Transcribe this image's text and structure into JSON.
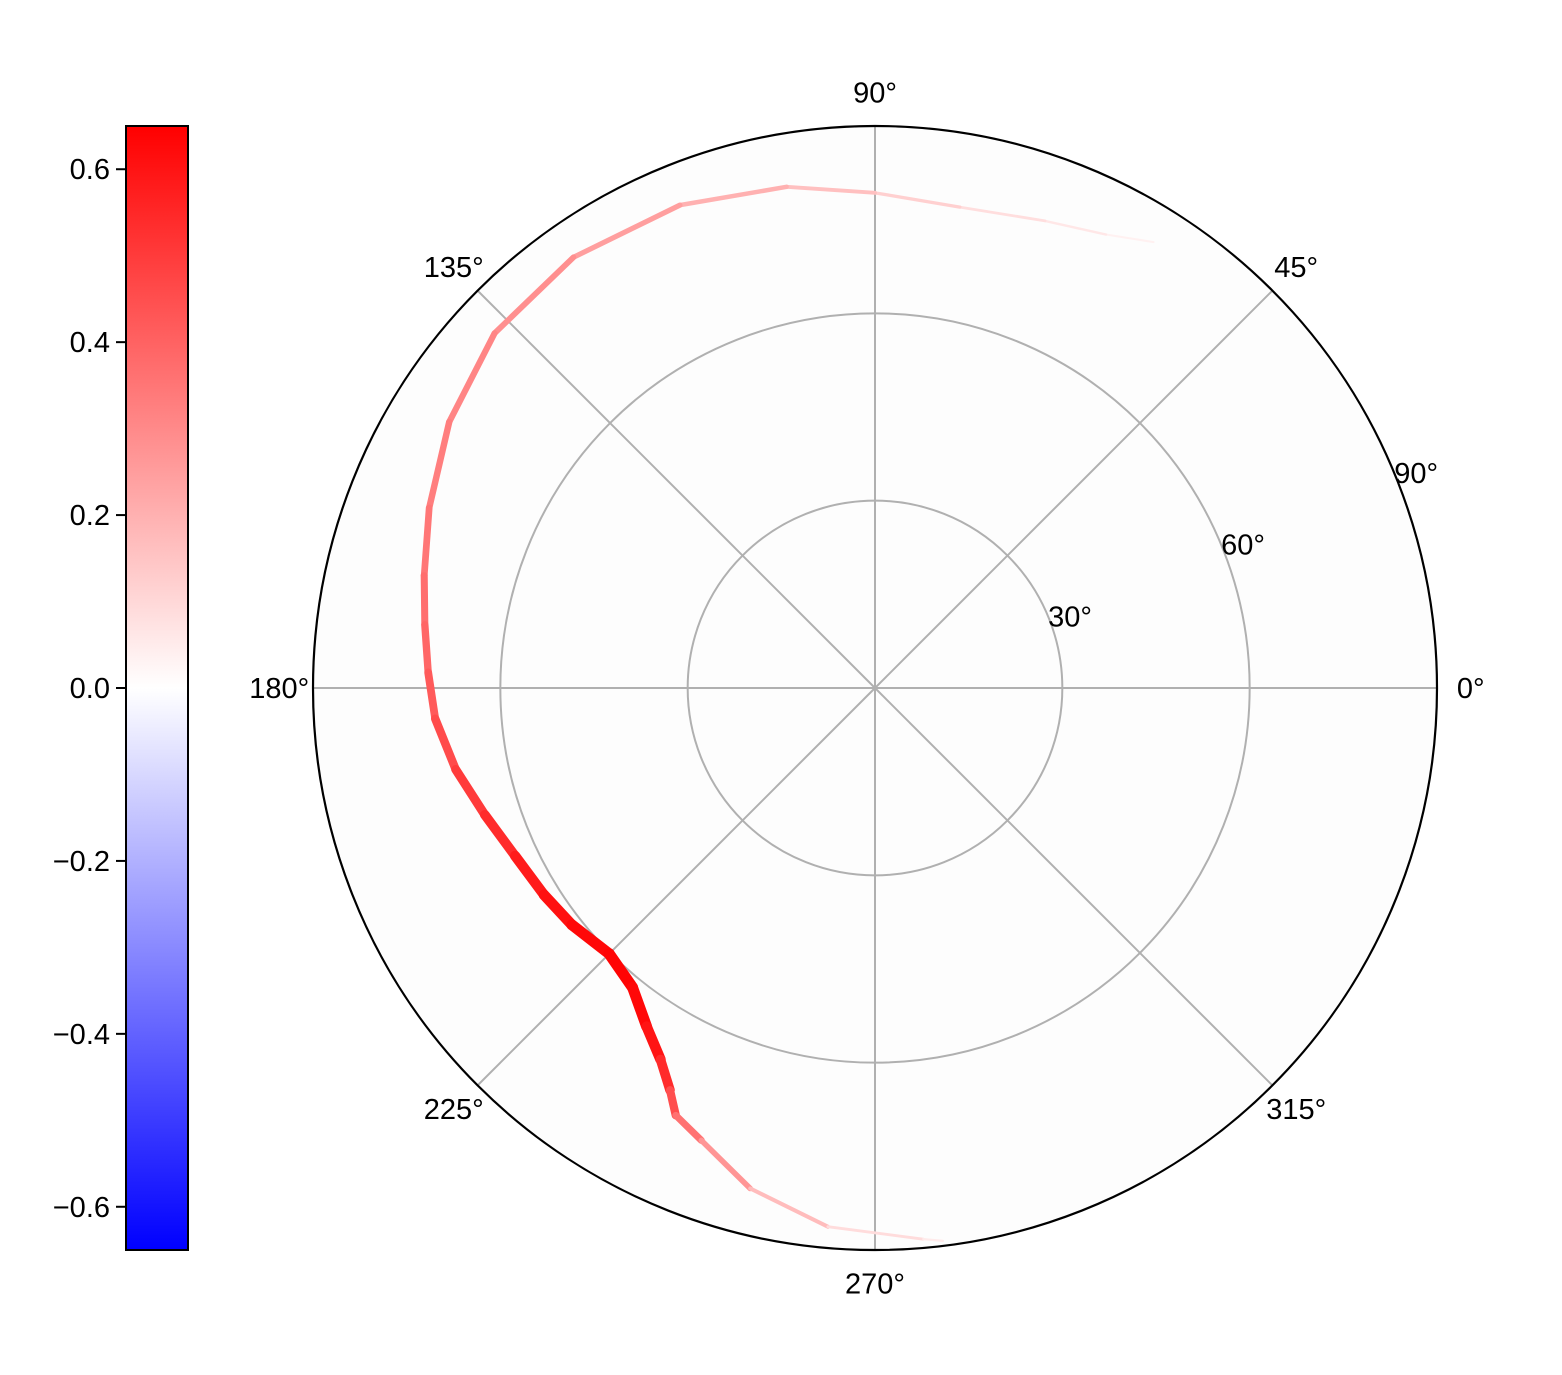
{
  "chart_data": {
    "type": "polar",
    "title": "",
    "angular_ticks": [
      {
        "angle": 0,
        "label": "0°"
      },
      {
        "angle": 45,
        "label": "45°"
      },
      {
        "angle": 90,
        "label": "90°"
      },
      {
        "angle": 135,
        "label": "135°"
      },
      {
        "angle": 180,
        "label": "180°"
      },
      {
        "angle": 225,
        "label": "225°"
      },
      {
        "angle": 270,
        "label": "270°"
      },
      {
        "angle": 315,
        "label": "315°"
      }
    ],
    "radial_ticks": [
      {
        "value": 30,
        "label": "30°"
      },
      {
        "value": 60,
        "label": "60°"
      },
      {
        "value": 90,
        "label": "90°"
      }
    ],
    "radial_range": [
      0,
      90
    ],
    "grid": true,
    "colormap": {
      "name": "bwr",
      "min": -0.65,
      "max": 0.65,
      "colors": [
        "#0000ff",
        "#ffffff",
        "#ff0000"
      ]
    },
    "colorbar": {
      "placement": "left",
      "ticks": [
        {
          "value": 0.6,
          "label": "0.6"
        },
        {
          "value": 0.4,
          "label": "0.4"
        },
        {
          "value": 0.2,
          "label": "0.2"
        },
        {
          "value": 0.0,
          "label": "0.0"
        },
        {
          "value": -0.2,
          "label": "−0.2"
        },
        {
          "value": -0.4,
          "label": "−0.4"
        },
        {
          "value": -0.6,
          "label": "−0.6"
        }
      ]
    },
    "series": [
      {
        "points": [
          {
            "theta": 58,
            "r": 84.2,
            "value": 0.02
          },
          {
            "theta": 63,
            "r": 81.5,
            "value": 0.05
          },
          {
            "theta": 70,
            "r": 79.6,
            "value": 0.07
          },
          {
            "theta": 80,
            "r": 78.2,
            "value": 0.1
          },
          {
            "theta": 90,
            "r": 79.3,
            "value": 0.14
          },
          {
            "theta": 100,
            "r": 81.5,
            "value": 0.18
          },
          {
            "theta": 112,
            "r": 83.4,
            "value": 0.22
          },
          {
            "theta": 125,
            "r": 84.2,
            "value": 0.27
          },
          {
            "theta": 137,
            "r": 83.3,
            "value": 0.3
          },
          {
            "theta": 148,
            "r": 80.4,
            "value": 0.32
          },
          {
            "theta": 158,
            "r": 77.0,
            "value": 0.34
          },
          {
            "theta": 166,
            "r": 74.4,
            "value": 0.36
          },
          {
            "theta": 172,
            "r": 72.8,
            "value": 0.38
          },
          {
            "theta": 178,
            "r": 71.6,
            "value": 0.4
          },
          {
            "theta": 184,
            "r": 70.6,
            "value": 0.44
          },
          {
            "theta": 191,
            "r": 68.4,
            "value": 0.48
          },
          {
            "theta": 198,
            "r": 65.7,
            "value": 0.52
          },
          {
            "theta": 205,
            "r": 63.6,
            "value": 0.56
          },
          {
            "theta": 212,
            "r": 62.5,
            "value": 0.6
          },
          {
            "theta": 218,
            "r": 61.6,
            "value": 0.62
          },
          {
            "theta": 225,
            "r": 60.2,
            "value": 0.64
          },
          {
            "theta": 231,
            "r": 61.7,
            "value": 0.64
          },
          {
            "theta": 236,
            "r": 65.4,
            "value": 0.62
          },
          {
            "theta": 240,
            "r": 68.7,
            "value": 0.58
          },
          {
            "theta": 243,
            "r": 72.3,
            "value": 0.5
          },
          {
            "theta": 245,
            "r": 75.5,
            "value": 0.4
          },
          {
            "theta": 249,
            "r": 77.6,
            "value": 0.32
          },
          {
            "theta": 256,
            "r": 82.6,
            "value": 0.22
          },
          {
            "theta": 265,
            "r": 86.6,
            "value": 0.12
          },
          {
            "theta": 275,
            "r": 88.6,
            "value": 0.06
          },
          {
            "theta": 277,
            "r": 89.2,
            "value": 0.04
          }
        ]
      }
    ]
  }
}
